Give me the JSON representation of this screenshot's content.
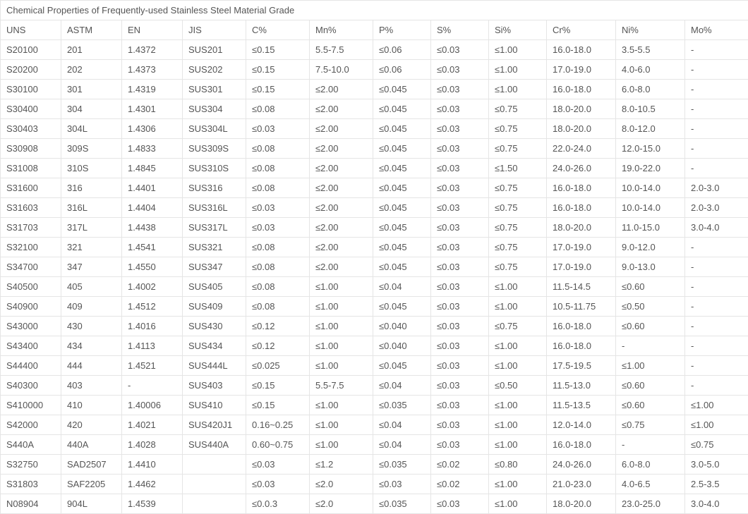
{
  "table": {
    "title": "Chemical Properties of Frequently-used Stainless Steel Material Grade",
    "columns": [
      "UNS",
      "ASTM",
      "EN",
      "JIS",
      "C%",
      "Mn%",
      "P%",
      "S%",
      "Si%",
      "Cr%",
      "Ni%",
      "Mo%"
    ],
    "rows": [
      [
        "S20100",
        "201",
        "1.4372",
        "SUS201",
        "≤0.15",
        "5.5-7.5",
        "≤0.06",
        "≤0.03",
        "≤1.00",
        "16.0-18.0",
        "3.5-5.5",
        "-"
      ],
      [
        "S20200",
        "202",
        "1.4373",
        "SUS202",
        "≤0.15",
        "7.5-10.0",
        "≤0.06",
        "≤0.03",
        "≤1.00",
        "17.0-19.0",
        "4.0-6.0",
        "-"
      ],
      [
        "S30100",
        "301",
        "1.4319",
        "SUS301",
        "≤0.15",
        "≤2.00",
        "≤0.045",
        "≤0.03",
        "≤1.00",
        "16.0-18.0",
        "6.0-8.0",
        "-"
      ],
      [
        "S30400",
        "304",
        "1.4301",
        "SUS304",
        "≤0.08",
        "≤2.00",
        "≤0.045",
        "≤0.03",
        "≤0.75",
        "18.0-20.0",
        "8.0-10.5",
        "-"
      ],
      [
        "S30403",
        "304L",
        "1.4306",
        "SUS304L",
        "≤0.03",
        "≤2.00",
        "≤0.045",
        "≤0.03",
        "≤0.75",
        "18.0-20.0",
        "8.0-12.0",
        "-"
      ],
      [
        "S30908",
        "309S",
        "1.4833",
        "SUS309S",
        "≤0.08",
        "≤2.00",
        "≤0.045",
        "≤0.03",
        "≤0.75",
        "22.0-24.0",
        "12.0-15.0",
        "-"
      ],
      [
        "S31008",
        "310S",
        "1.4845",
        "SUS310S",
        "≤0.08",
        "≤2.00",
        "≤0.045",
        "≤0.03",
        "≤1.50",
        "24.0-26.0",
        "19.0-22.0",
        "-"
      ],
      [
        "S31600",
        "316",
        "1.4401",
        "SUS316",
        "≤0.08",
        "≤2.00",
        "≤0.045",
        "≤0.03",
        "≤0.75",
        "16.0-18.0",
        "10.0-14.0",
        "2.0-3.0"
      ],
      [
        "S31603",
        "316L",
        "1.4404",
        "SUS316L",
        "≤0.03",
        "≤2.00",
        "≤0.045",
        "≤0.03",
        "≤0.75",
        "16.0-18.0",
        "10.0-14.0",
        "2.0-3.0"
      ],
      [
        "S31703",
        "317L",
        "1.4438",
        "SUS317L",
        "≤0.03",
        "≤2.00",
        "≤0.045",
        "≤0.03",
        "≤0.75",
        "18.0-20.0",
        "11.0-15.0",
        "3.0-4.0"
      ],
      [
        "S32100",
        "321",
        "1.4541",
        "SUS321",
        "≤0.08",
        "≤2.00",
        "≤0.045",
        "≤0.03",
        "≤0.75",
        "17.0-19.0",
        "9.0-12.0",
        "-"
      ],
      [
        "S34700",
        "347",
        "1.4550",
        "SUS347",
        "≤0.08",
        "≤2.00",
        "≤0.045",
        "≤0.03",
        "≤0.75",
        "17.0-19.0",
        "9.0-13.0",
        "-"
      ],
      [
        "S40500",
        "405",
        "1.4002",
        "SUS405",
        "≤0.08",
        "≤1.00",
        "≤0.04",
        "≤0.03",
        "≤1.00",
        "11.5-14.5",
        "≤0.60",
        "-"
      ],
      [
        "S40900",
        "409",
        "1.4512",
        "SUS409",
        "≤0.08",
        "≤1.00",
        "≤0.045",
        "≤0.03",
        "≤1.00",
        "10.5-11.75",
        "≤0.50",
        "-"
      ],
      [
        "S43000",
        "430",
        "1.4016",
        "SUS430",
        "≤0.12",
        "≤1.00",
        "≤0.040",
        "≤0.03",
        "≤0.75",
        "16.0-18.0",
        "≤0.60",
        "-"
      ],
      [
        "S43400",
        "434",
        "1.4113",
        "SUS434",
        "≤0.12",
        "≤1.00",
        "≤0.040",
        "≤0.03",
        "≤1.00",
        "16.0-18.0",
        "-",
        "-"
      ],
      [
        "S44400",
        "444",
        "1.4521",
        "SUS444L",
        "≤0.025",
        "≤1.00",
        "≤0.045",
        "≤0.03",
        "≤1.00",
        "17.5-19.5",
        "≤1.00",
        "-"
      ],
      [
        "S40300",
        "403",
        "-",
        "SUS403",
        "≤0.15",
        "5.5-7.5",
        "≤0.04",
        "≤0.03",
        "≤0.50",
        "11.5-13.0",
        "≤0.60",
        "-"
      ],
      [
        "S410000",
        "410",
        "1.40006",
        "SUS410",
        "≤0.15",
        "≤1.00",
        "≤0.035",
        "≤0.03",
        "≤1.00",
        "11.5-13.5",
        "≤0.60",
        "≤1.00"
      ],
      [
        "S42000",
        "420",
        "1.4021",
        "SUS420J1",
        "0.16~0.25",
        "≤1.00",
        "≤0.04",
        "≤0.03",
        "≤1.00",
        "12.0-14.0",
        "≤0.75",
        "≤1.00"
      ],
      [
        "S440A",
        "440A",
        "1.4028",
        "SUS440A",
        "0.60~0.75",
        "≤1.00",
        "≤0.04",
        "≤0.03",
        "≤1.00",
        "16.0-18.0",
        "-",
        "≤0.75"
      ],
      [
        "S32750",
        "SAD2507",
        "1.4410",
        "",
        "≤0.03",
        "≤1.2",
        "≤0.035",
        "≤0.02",
        "≤0.80",
        "24.0-26.0",
        "6.0-8.0",
        "3.0-5.0"
      ],
      [
        "S31803",
        "SAF2205",
        "1.4462",
        "",
        "≤0.03",
        "≤2.0",
        "≤0.03",
        "≤0.02",
        "≤1.00",
        "21.0-23.0",
        "4.0-6.5",
        "2.5-3.5"
      ],
      [
        "N08904",
        "904L",
        "1.4539",
        "",
        "≤0.0.3",
        "≤2.0",
        "≤0.035",
        "≤0.03",
        "≤1.00",
        "18.0-20.0",
        "23.0-25.0",
        "3.0-4.0"
      ]
    ],
    "style": {
      "border_color": "#e5e5e5",
      "text_color": "#555555",
      "background_color": "#ffffff",
      "font_size_pt": 10,
      "font_family": "Arial"
    }
  }
}
